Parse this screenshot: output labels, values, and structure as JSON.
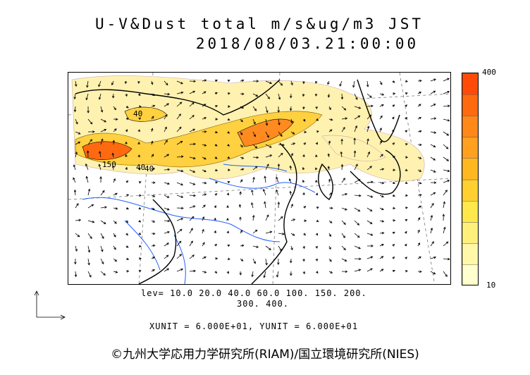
{
  "title": {
    "line1": "U-V&Dust total m/s&ug/m3 JST",
    "line2": "2018/08/03.21:00:00"
  },
  "colorbar": {
    "max_label": "400",
    "min_label": "10",
    "colors": [
      "#ffffd0",
      "#fff8a8",
      "#fff07c",
      "#ffe84c",
      "#ffd030",
      "#ffb820",
      "#ffa020",
      "#ff8818",
      "#ff6a10",
      "#ff4a08"
    ]
  },
  "legend": {
    "levels_line1": "lev= 10.0 20.0 40.0 60.0 100. 150. 200.",
    "levels_line2": "300. 400.",
    "units": "XUNIT = 6.000E+01, YUNIT = 6.000E+01"
  },
  "contour_labels": [
    "40",
    "150",
    "40",
    "40"
  ],
  "copyright": "©九州大学応用力学研究所(RIAM)/国立環境研究所(NIES)",
  "colors": {
    "coast": "#000000",
    "rivers": "#2060ff",
    "dust_low": "#fff2b0",
    "dust_mid": "#ffd040",
    "dust_high": "#ff6a10"
  }
}
